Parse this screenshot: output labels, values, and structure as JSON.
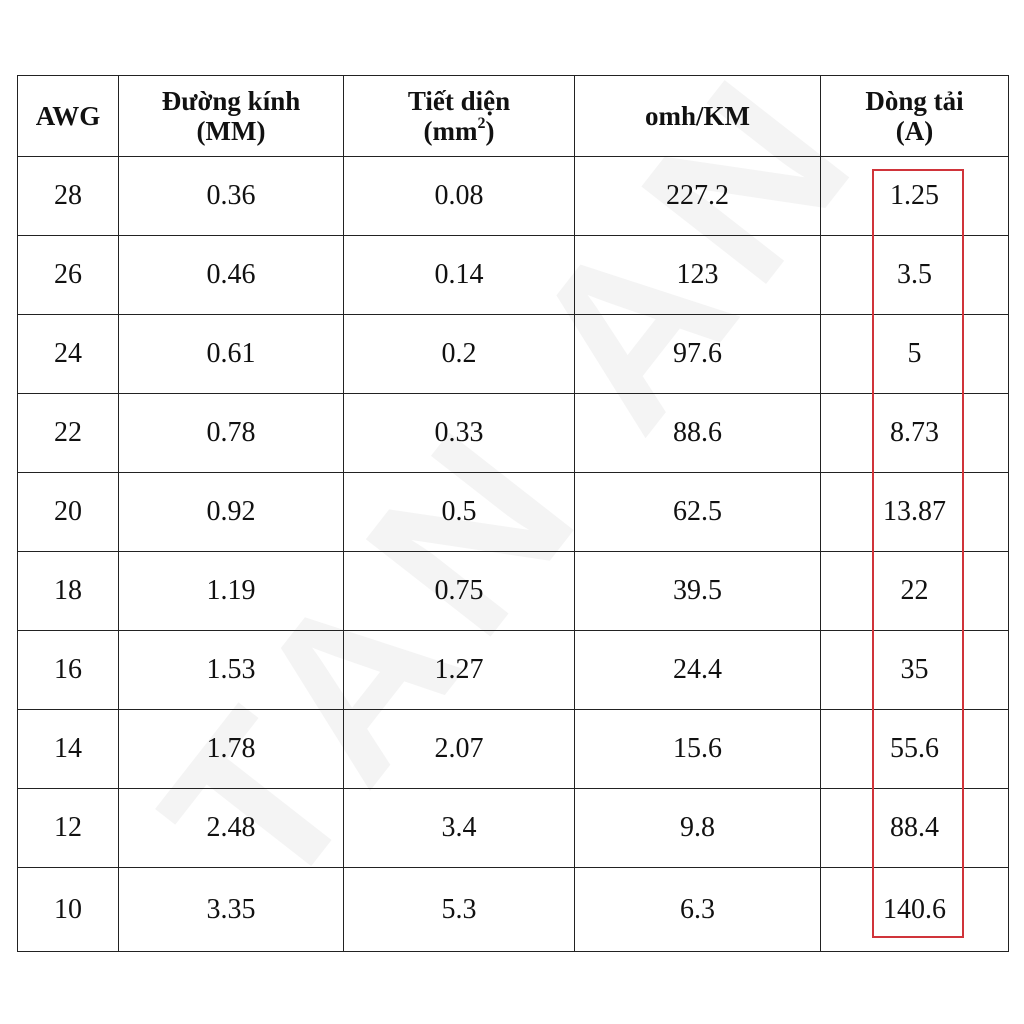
{
  "watermark": "TAN AN",
  "table": {
    "header": [
      {
        "lines": [
          "AWG"
        ]
      },
      {
        "lines": [
          "Đường kính",
          "(MM)"
        ]
      },
      {
        "lines": [
          "Tiết diện"
        ],
        "unit": "(mm",
        "superscript": "2",
        "unit_end": ")"
      },
      {
        "lines": [
          "omh/KM"
        ]
      },
      {
        "lines": [
          "Dòng tải",
          "(A)"
        ]
      }
    ],
    "rows": [
      [
        "28",
        "0.36",
        "0.08",
        "227.2",
        "1.25"
      ],
      [
        "26",
        "0.46",
        "0.14",
        "123",
        "3.5"
      ],
      [
        "24",
        "0.61",
        "0.2",
        "97.6",
        "5"
      ],
      [
        "22",
        "0.78",
        "0.33",
        "88.6",
        "8.73"
      ],
      [
        "20",
        "0.92",
        "0.5",
        "62.5",
        "13.87"
      ],
      [
        "18",
        "1.19",
        "0.75",
        "39.5",
        "22"
      ],
      [
        "16",
        "1.53",
        "1.27",
        "24.4",
        "35"
      ],
      [
        "14",
        "1.78",
        "2.07",
        "15.6",
        "55.6"
      ],
      [
        "12",
        "2.48",
        "3.4",
        "9.8",
        "88.4"
      ],
      [
        "10",
        "3.35",
        "5.3",
        "6.3",
        "140.6"
      ]
    ]
  }
}
